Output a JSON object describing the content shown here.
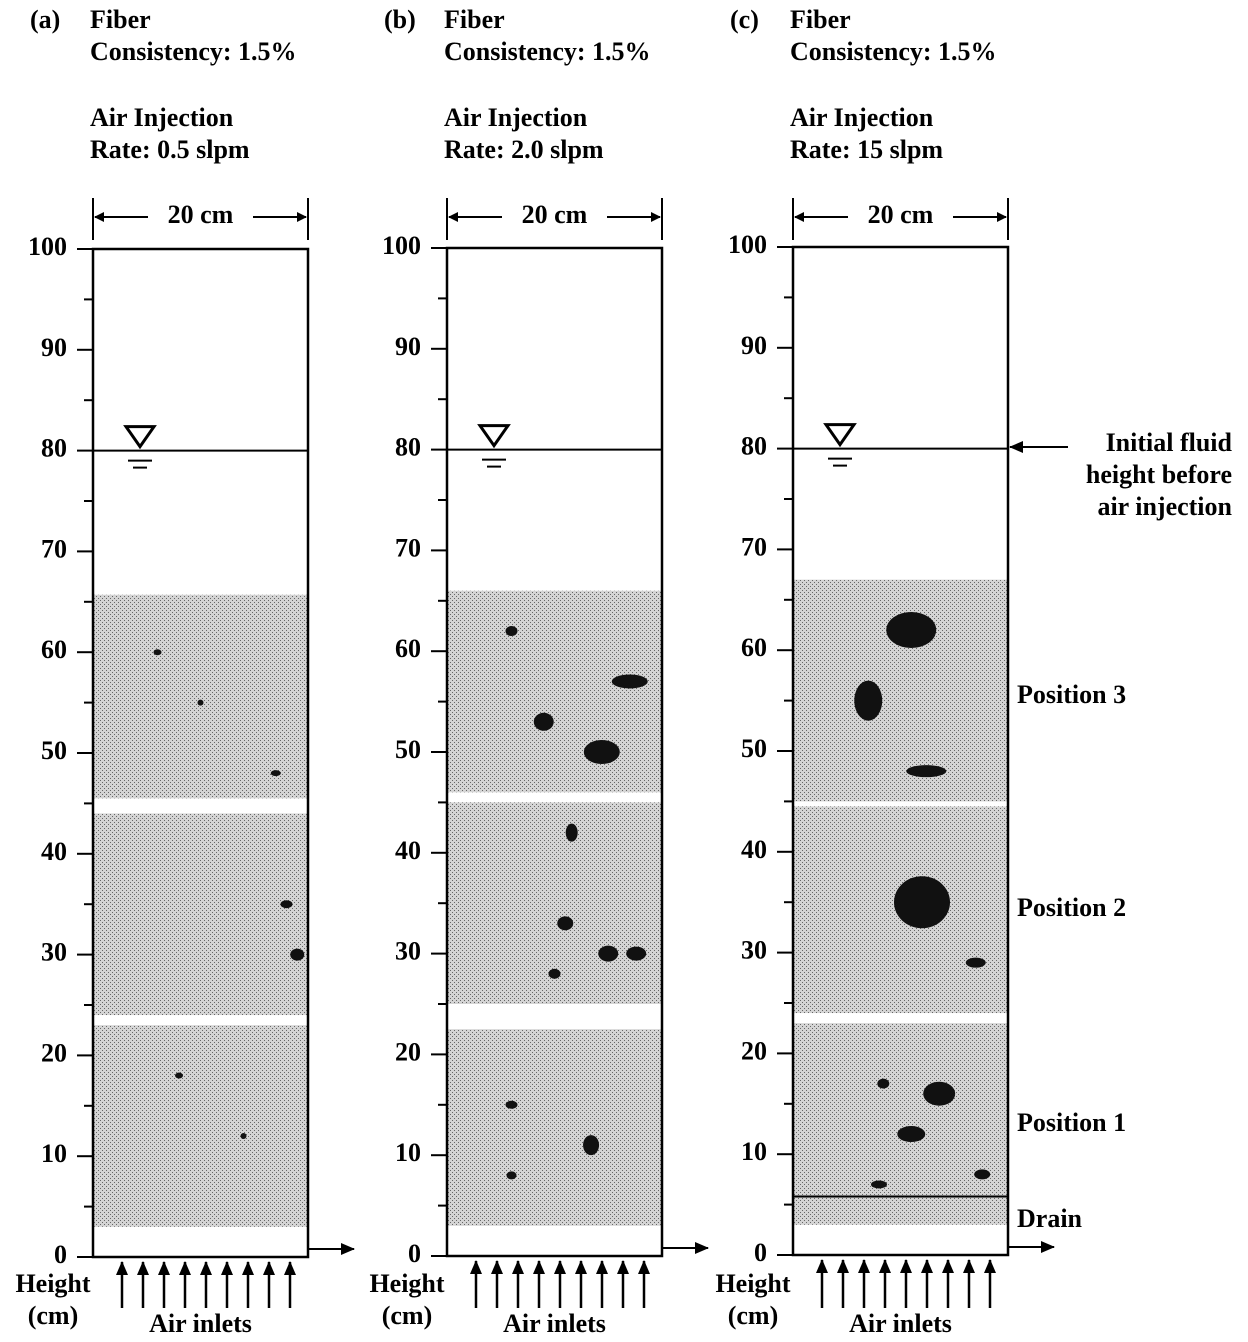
{
  "panels": [
    {
      "label": "(a)",
      "fiber": "Fiber",
      "consistency": "Consistency: 1.5%",
      "air_title": "Air Injection",
      "rate": "Rate: 0.5 slpm",
      "width_label": "20 cm",
      "ticks": [
        100,
        90,
        80,
        70,
        60,
        50,
        40,
        30,
        20,
        10,
        0
      ],
      "axis_title": [
        "Height",
        "(cm)"
      ],
      "inlets": "Air inlets"
    },
    {
      "label": "(b)",
      "fiber": "Fiber",
      "consistency": "Consistency: 1.5%",
      "air_title": "Air Injection",
      "rate": "Rate: 2.0 slpm",
      "width_label": "20 cm",
      "ticks": [
        100,
        90,
        80,
        70,
        60,
        50,
        40,
        30,
        20,
        10,
        0
      ],
      "axis_title": [
        "Height",
        "(cm)"
      ],
      "inlets": "Air inlets"
    },
    {
      "label": "(c)",
      "fiber": "Fiber",
      "consistency": "Consistency: 1.5%",
      "air_title": "Air Injection",
      "rate": "Rate: 15 slpm",
      "width_label": "20 cm",
      "ticks": [
        100,
        90,
        80,
        70,
        60,
        50,
        40,
        30,
        20,
        10,
        0
      ],
      "axis_title": [
        "Height",
        "(cm)"
      ],
      "inlets": "Air inlets"
    }
  ],
  "annotations": {
    "initial": [
      "Initial fluid",
      "height before",
      "air injection"
    ],
    "positions": [
      "Position 3",
      "Position 2",
      "Position 1"
    ],
    "drain": "Drain"
  }
}
